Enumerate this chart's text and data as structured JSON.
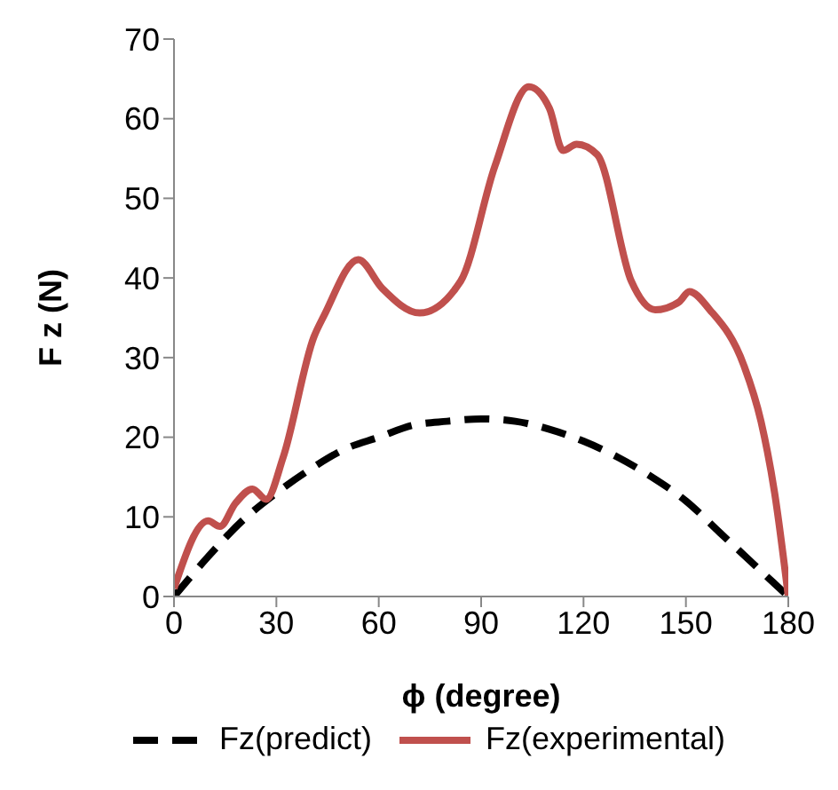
{
  "chart_data": {
    "type": "line",
    "xlabel": "ϕ (degree)",
    "ylabel": "F z (N)",
    "xlim": [
      0,
      180
    ],
    "xticks": [
      0,
      30,
      60,
      90,
      120,
      150,
      180
    ],
    "ylim": [
      0,
      70
    ],
    "yticks": [
      0,
      10,
      20,
      30,
      40,
      50,
      60,
      70
    ],
    "grid": false,
    "legend": "bottom",
    "marker": "none",
    "series": [
      {
        "name": "Fz(predict)",
        "color": "#000000",
        "line_style": "dashed",
        "x": [
          0,
          10,
          20,
          30,
          40,
          50,
          60,
          70,
          80,
          90,
          100,
          110,
          120,
          130,
          140,
          150,
          160,
          170,
          180
        ],
        "values": [
          0,
          5,
          9.5,
          13,
          16,
          18.5,
          20,
          21.5,
          22,
          22.3,
          22,
          21,
          19.5,
          17.5,
          15,
          12,
          8,
          4,
          0
        ]
      },
      {
        "name": "Fz(experimental)",
        "color": "#c0504d",
        "line_style": "solid",
        "x": [
          0,
          10,
          13.5,
          18,
          23,
          27,
          32,
          41,
          44,
          54,
          61,
          72,
          84,
          94,
          104,
          110,
          114,
          118,
          124,
          134,
          141,
          148,
          151,
          157,
          167,
          172,
          176,
          180
        ],
        "values": [
          1,
          9.5,
          8.8,
          11.7,
          13.5,
          12.2,
          17.5,
          32.6,
          35.3,
          42.3,
          38.7,
          35.6,
          39.6,
          54,
          64,
          61.3,
          56,
          56.8,
          55.5,
          39.6,
          36,
          37,
          38.3,
          36,
          29,
          22,
          13,
          0
        ]
      }
    ]
  }
}
